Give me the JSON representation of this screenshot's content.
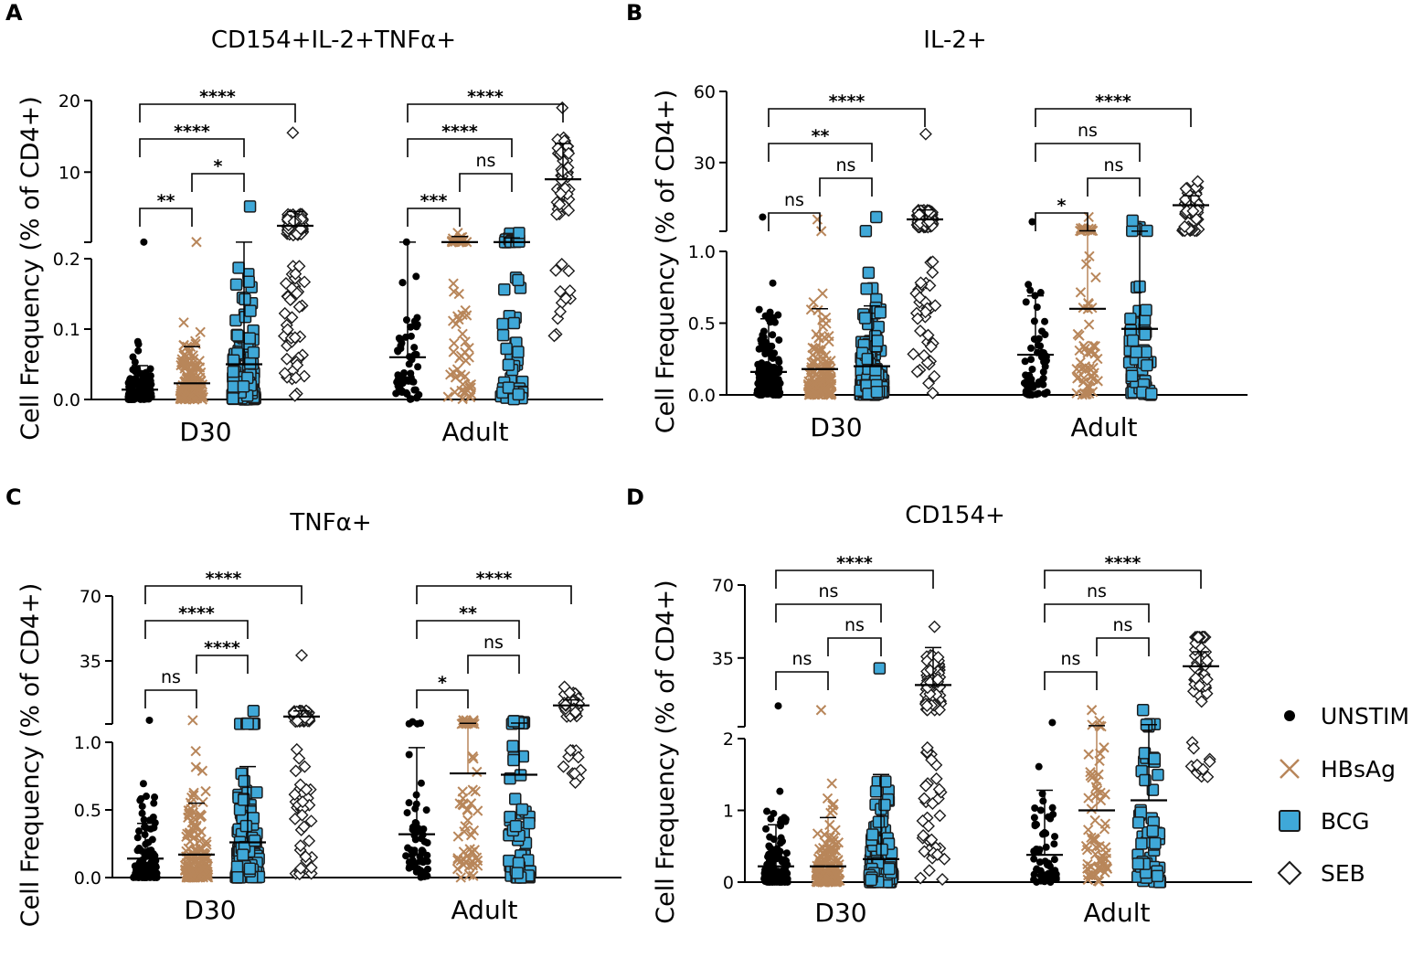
{
  "figure": {
    "legend": [
      {
        "label": "UNSTIM",
        "marker": "circle",
        "color": "#000000"
      },
      {
        "label": "HBsAg",
        "marker": "x",
        "color": "#B8865A"
      },
      {
        "label": "BCG",
        "marker": "square",
        "color": "#3FA8D8"
      },
      {
        "label": "SEB",
        "marker": "diamond",
        "color": "#FFFFFF"
      }
    ],
    "colors": {
      "unstim": "#000000",
      "hbsag": "#B8865A",
      "bcg": "#3FA8D8",
      "seb": "#FFFFFF",
      "axis": "#000000"
    }
  },
  "chart_data": [
    {
      "panel_letter": "A",
      "type": "scatter",
      "title": "CD154+IL-2+TNFα+",
      "ylabel": "Cell Frequency (% of CD4+)",
      "categories": [
        "D30",
        "Adult"
      ],
      "ylim_lower": [
        0,
        0.2
      ],
      "ylim_upper": [
        0.2,
        20
      ],
      "lower_ticks": [
        {
          "v": 0,
          "label": "0.0"
        },
        {
          "v": 0.1,
          "label": "0.1"
        },
        {
          "v": 0.2,
          "label": "0.2"
        }
      ],
      "upper_ticks": [
        {
          "v": 10,
          "label": "10"
        },
        {
          "v": 20,
          "label": "20"
        }
      ],
      "groups": [
        {
          "name": "D30",
          "series": [
            {
              "name": "UNSTIM",
              "mean": 0.014,
              "sd_top": 0.048,
              "n": 140,
              "max": 0.22
            },
            {
              "name": "HBsAg",
              "mean": 0.023,
              "sd_top": 0.075,
              "n": 140,
              "max": 0.23
            },
            {
              "name": "BCG",
              "mean": 0.05,
              "sd_top": 0.21,
              "n": 140,
              "max": 5.2
            },
            {
              "name": "SEB",
              "mean": 2.5,
              "sd_top": 4.5,
              "n": 140,
              "max": 15.5,
              "low_tail": 0.005
            }
          ]
        },
        {
          "name": "Adult",
          "series": [
            {
              "name": "UNSTIM",
              "mean": 0.06,
              "sd_top": 0.22,
              "n": 60,
              "max": 0.23
            },
            {
              "name": "HBsAg",
              "mean": 0.22,
              "sd_top": 1.0,
              "n": 60,
              "max": 1.5
            },
            {
              "name": "BCG",
              "mean": 0.22,
              "sd_top": 0.8,
              "n": 60,
              "max": 1.5
            },
            {
              "name": "SEB",
              "mean": 9,
              "sd_top": 14,
              "n": 60,
              "max": 19,
              "low_tail": 0.08
            }
          ]
        }
      ],
      "brackets": [
        {
          "group": "D30",
          "from": 0,
          "to": 1,
          "level": 1,
          "label": "**"
        },
        {
          "group": "D30",
          "from": 1,
          "to": 2,
          "level": 2,
          "label": "*"
        },
        {
          "group": "D30",
          "from": 0,
          "to": 2,
          "level": 3,
          "label": "****"
        },
        {
          "group": "D30",
          "from": 0,
          "to": 3,
          "level": 4,
          "label": "****"
        },
        {
          "group": "Adult",
          "from": 0,
          "to": 1,
          "level": 1,
          "label": "***"
        },
        {
          "group": "Adult",
          "from": 1,
          "to": 2,
          "level": 2,
          "label": "ns"
        },
        {
          "group": "Adult",
          "from": 0,
          "to": 2,
          "level": 3,
          "label": "****"
        },
        {
          "group": "Adult",
          "from": 0,
          "to": 3,
          "level": 4,
          "label": "****"
        }
      ]
    },
    {
      "panel_letter": "B",
      "type": "scatter",
      "title": "IL-2+",
      "ylabel": "Cell Frequency (% of CD4+)",
      "categories": [
        "D30",
        "Adult"
      ],
      "ylim_lower": [
        0,
        1.0
      ],
      "ylim_upper": [
        1.0,
        60
      ],
      "lower_ticks": [
        {
          "v": 0,
          "label": "0.0"
        },
        {
          "v": 0.5,
          "label": "0.5"
        },
        {
          "v": 1.0,
          "label": "1.0"
        }
      ],
      "upper_ticks": [
        {
          "v": 30,
          "label": "30"
        },
        {
          "v": 60,
          "label": "60"
        }
      ],
      "groups": [
        {
          "name": "D30",
          "series": [
            {
              "name": "UNSTIM",
              "mean": 0.16,
              "sd_top": 0.53,
              "n": 160,
              "max": 7
            },
            {
              "name": "HBsAg",
              "mean": 0.18,
              "sd_top": 0.6,
              "n": 160,
              "max": 6
            },
            {
              "name": "BCG",
              "mean": 0.2,
              "sd_top": 0.62,
              "n": 160,
              "max": 7
            },
            {
              "name": "SEB",
              "mean": 6,
              "sd_top": 10,
              "n": 160,
              "max": 42,
              "low_tail": 0.01
            }
          ]
        },
        {
          "name": "Adult",
          "series": [
            {
              "name": "UNSTIM",
              "mean": 0.28,
              "sd_top": 0.69,
              "n": 60,
              "max": 5
            },
            {
              "name": "HBsAg",
              "mean": 0.6,
              "sd_top": 1.2,
              "n": 60,
              "max": 7
            },
            {
              "name": "BCG",
              "mean": 0.46,
              "sd_top": 1.05,
              "n": 60,
              "max": 5.5
            },
            {
              "name": "SEB",
              "mean": 12,
              "sd_top": 16,
              "n": 60,
              "max": 22,
              "low_tail": 3
            }
          ]
        }
      ],
      "brackets": [
        {
          "group": "D30",
          "from": 0,
          "to": 1,
          "level": 1,
          "label": "ns"
        },
        {
          "group": "D30",
          "from": 1,
          "to": 2,
          "level": 2,
          "label": "ns"
        },
        {
          "group": "D30",
          "from": 0,
          "to": 2,
          "level": 3,
          "label": "**"
        },
        {
          "group": "D30",
          "from": 0,
          "to": 3,
          "level": 4,
          "label": "****"
        },
        {
          "group": "Adult",
          "from": 0,
          "to": 1,
          "level": 1,
          "label": "*"
        },
        {
          "group": "Adult",
          "from": 1,
          "to": 2,
          "level": 2,
          "label": "ns"
        },
        {
          "group": "Adult",
          "from": 0,
          "to": 2,
          "level": 3,
          "label": "ns"
        },
        {
          "group": "Adult",
          "from": 0,
          "to": 3,
          "level": 4,
          "label": "****"
        }
      ]
    },
    {
      "panel_letter": "C",
      "type": "scatter",
      "title": "TNFα+",
      "ylabel": "Cell Frequency (% of CD4+)",
      "categories": [
        "D30",
        "Adult"
      ],
      "ylim_lower": [
        0,
        1.0
      ],
      "ylim_upper": [
        1.0,
        70
      ],
      "lower_ticks": [
        {
          "v": 0,
          "label": "0.0"
        },
        {
          "v": 0.5,
          "label": "0.5"
        },
        {
          "v": 1.0,
          "label": "1.0"
        }
      ],
      "upper_ticks": [
        {
          "v": 35,
          "label": "35"
        },
        {
          "v": 70,
          "label": "70"
        }
      ],
      "groups": [
        {
          "name": "D30",
          "series": [
            {
              "name": "UNSTIM",
              "mean": 0.14,
              "sd_top": 0.4,
              "n": 160,
              "max": 3
            },
            {
              "name": "HBsAg",
              "mean": 0.17,
              "sd_top": 0.55,
              "n": 160,
              "max": 3
            },
            {
              "name": "BCG",
              "mean": 0.26,
              "sd_top": 0.82,
              "n": 160,
              "max": 8
            },
            {
              "name": "SEB",
              "mean": 5,
              "sd_top": 8,
              "n": 160,
              "max": 38,
              "low_tail": 0.01
            }
          ]
        },
        {
          "name": "Adult",
          "series": [
            {
              "name": "UNSTIM",
              "mean": 0.32,
              "sd_top": 0.96,
              "n": 60,
              "max": 2.2
            },
            {
              "name": "HBsAg",
              "mean": 0.77,
              "sd_top": 1.4,
              "n": 60,
              "max": 3
            },
            {
              "name": "BCG",
              "mean": 0.76,
              "sd_top": 1.5,
              "n": 60,
              "max": 2.5
            },
            {
              "name": "SEB",
              "mean": 11,
              "sd_top": 14,
              "n": 60,
              "max": 21,
              "low_tail": 0.7
            }
          ]
        }
      ],
      "brackets": [
        {
          "group": "D30",
          "from": 0,
          "to": 1,
          "level": 1,
          "label": "ns"
        },
        {
          "group": "D30",
          "from": 1,
          "to": 2,
          "level": 2,
          "label": "****"
        },
        {
          "group": "D30",
          "from": 0,
          "to": 2,
          "level": 3,
          "label": "****"
        },
        {
          "group": "D30",
          "from": 0,
          "to": 3,
          "level": 4,
          "label": "****"
        },
        {
          "group": "Adult",
          "from": 0,
          "to": 1,
          "level": 1,
          "label": "*"
        },
        {
          "group": "Adult",
          "from": 1,
          "to": 2,
          "level": 2,
          "label": "ns"
        },
        {
          "group": "Adult",
          "from": 0,
          "to": 2,
          "level": 3,
          "label": "**"
        },
        {
          "group": "Adult",
          "from": 0,
          "to": 3,
          "level": 4,
          "label": "****"
        }
      ]
    },
    {
      "panel_letter": "D",
      "type": "scatter",
      "title": "CD154+",
      "ylabel": "Cell Frequency (% of CD4+)",
      "categories": [
        "D30",
        "Adult"
      ],
      "ylim_lower": [
        0,
        2
      ],
      "ylim_upper": [
        2,
        70
      ],
      "lower_ticks": [
        {
          "v": 0,
          "label": "0"
        },
        {
          "v": 1,
          "label": "1"
        },
        {
          "v": 2,
          "label": "2"
        }
      ],
      "upper_ticks": [
        {
          "v": 35,
          "label": "35"
        },
        {
          "v": 70,
          "label": "70"
        }
      ],
      "groups": [
        {
          "name": "D30",
          "series": [
            {
              "name": "UNSTIM",
              "mean": 0.22,
              "sd_top": 0.8,
              "n": 160,
              "max": 12
            },
            {
              "name": "HBsAg",
              "mean": 0.22,
              "sd_top": 0.9,
              "n": 160,
              "max": 10
            },
            {
              "name": "BCG",
              "mean": 0.32,
              "sd_top": 1.5,
              "n": 160,
              "max": 30
            },
            {
              "name": "SEB",
              "mean": 22,
              "sd_top": 40,
              "n": 160,
              "max": 50,
              "low_tail": 0.02
            }
          ]
        },
        {
          "name": "Adult",
          "series": [
            {
              "name": "UNSTIM",
              "mean": 0.38,
              "sd_top": 1.28,
              "n": 60,
              "max": 4
            },
            {
              "name": "HBsAg",
              "mean": 1.0,
              "sd_top": 2.5,
              "n": 60,
              "max": 10
            },
            {
              "name": "BCG",
              "mean": 1.14,
              "sd_top": 3,
              "n": 60,
              "max": 10
            },
            {
              "name": "SEB",
              "mean": 31,
              "sd_top": 38,
              "n": 60,
              "max": 45,
              "low_tail": 1.3
            }
          ]
        }
      ],
      "brackets": [
        {
          "group": "D30",
          "from": 0,
          "to": 1,
          "level": 1,
          "label": "ns"
        },
        {
          "group": "D30",
          "from": 1,
          "to": 2,
          "level": 2,
          "label": "ns"
        },
        {
          "group": "D30",
          "from": 0,
          "to": 2,
          "level": 3,
          "label": "ns"
        },
        {
          "group": "D30",
          "from": 0,
          "to": 3,
          "level": 4,
          "label": "****"
        },
        {
          "group": "Adult",
          "from": 0,
          "to": 1,
          "level": 1,
          "label": "ns"
        },
        {
          "group": "Adult",
          "from": 1,
          "to": 2,
          "level": 2,
          "label": "ns"
        },
        {
          "group": "Adult",
          "from": 0,
          "to": 2,
          "level": 3,
          "label": "ns"
        },
        {
          "group": "Adult",
          "from": 0,
          "to": 3,
          "level": 4,
          "label": "****"
        }
      ]
    }
  ]
}
